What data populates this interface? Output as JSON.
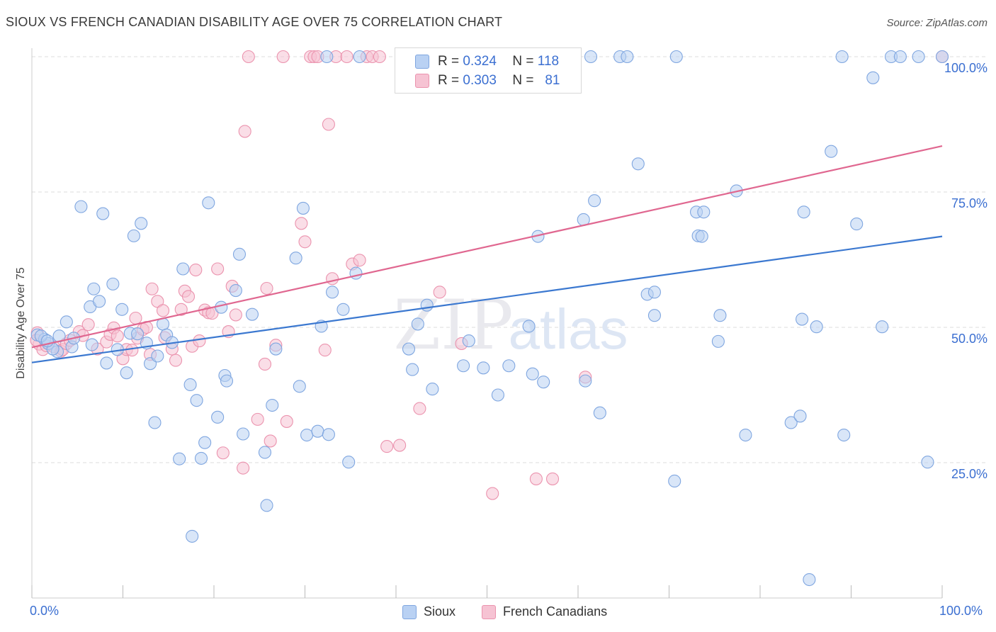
{
  "title": "SIOUX VS FRENCH CANADIAN DISABILITY AGE OVER 75 CORRELATION CHART",
  "source": "Source: ZipAtlas.com",
  "watermark": {
    "zip": "ZIP",
    "atlas": "atlas"
  },
  "legend": {
    "sioux": {
      "r_label": "R =",
      "r_value": "0.324",
      "n_label": "N =",
      "n_value": "118"
    },
    "french": {
      "r_label": "R =",
      "r_value": "0.303",
      "n_label": "N =",
      "n_value": "81"
    }
  },
  "colors": {
    "sioux_fill": "#b9d1f3",
    "sioux_stroke": "#7fa6e0",
    "sioux_line": "#3b78d0",
    "french_fill": "#f6c3d3",
    "french_stroke": "#eb93ae",
    "french_line": "#e06790",
    "tick_text": "#3b6fd1",
    "grid": "#dddddd"
  },
  "chart_data": {
    "type": "scatter",
    "title": "SIOUX VS FRENCH CANADIAN DISABILITY AGE OVER 75 CORRELATION CHART",
    "xlabel": "",
    "ylabel": "Disability Age Over 75",
    "xlim": [
      0,
      100
    ],
    "ylim": [
      0,
      100
    ],
    "x_tick_labels": [
      "0.0%",
      "100.0%"
    ],
    "y_tick_labels": [
      "100.0%",
      "75.0%",
      "50.0%",
      "25.0%"
    ],
    "y_tick_values": [
      100,
      75,
      50,
      25
    ],
    "grid": true,
    "legend_position": "bottom",
    "series": [
      {
        "name": "Sioux",
        "trend": {
          "x": [
            0,
            100
          ],
          "y": [
            43.5,
            66.8
          ]
        },
        "points": [
          [
            0.6,
            48.6
          ],
          [
            1.4,
            47.8
          ],
          [
            1.8,
            47
          ],
          [
            2.8,
            45.5
          ],
          [
            2.3,
            46
          ],
          [
            3,
            48.4
          ],
          [
            3.8,
            51
          ],
          [
            4.4,
            46.4
          ],
          [
            4.6,
            48
          ],
          [
            5.4,
            72.3
          ],
          [
            6.4,
            53.8
          ],
          [
            6.6,
            46.8
          ],
          [
            6.8,
            57.1
          ],
          [
            7.4,
            54.8
          ],
          [
            7.8,
            71
          ],
          [
            8.2,
            43.4
          ],
          [
            8.9,
            58
          ],
          [
            9.4,
            45.9
          ],
          [
            9.9,
            53.3
          ],
          [
            10.4,
            41.6
          ],
          [
            10.8,
            48.9
          ],
          [
            11.2,
            66.9
          ],
          [
            11.6,
            48.8
          ],
          [
            12,
            69.2
          ],
          [
            12.6,
            47.1
          ],
          [
            13,
            43.3
          ],
          [
            13.5,
            32.4
          ],
          [
            13.8,
            44.7
          ],
          [
            14.4,
            50.6
          ],
          [
            14.8,
            48.6
          ],
          [
            15.4,
            47.2
          ],
          [
            16.2,
            25.7
          ],
          [
            16.6,
            60.8
          ],
          [
            17.4,
            39.4
          ],
          [
            17.6,
            11.4
          ],
          [
            18.1,
            36.5
          ],
          [
            18.6,
            25.8
          ],
          [
            19,
            28.7
          ],
          [
            19.4,
            73
          ],
          [
            20.4,
            33.4
          ],
          [
            20.8,
            53.7
          ],
          [
            21.2,
            41.1
          ],
          [
            21.4,
            40.1
          ],
          [
            22.4,
            56.8
          ],
          [
            22.8,
            63.5
          ],
          [
            23.2,
            30.3
          ],
          [
            24.2,
            52.4
          ],
          [
            25.6,
            26.9
          ],
          [
            25.8,
            17.1
          ],
          [
            26.4,
            35.6
          ],
          [
            26.8,
            46
          ],
          [
            29,
            62.8
          ],
          [
            29.4,
            39.1
          ],
          [
            29.8,
            72
          ],
          [
            30.2,
            30.1
          ],
          [
            31.4,
            30.8
          ],
          [
            31.8,
            50.2
          ],
          [
            32.4,
            100
          ],
          [
            32.6,
            30.2
          ],
          [
            33,
            56.5
          ],
          [
            34.2,
            53.3
          ],
          [
            34.8,
            25.1
          ],
          [
            35.6,
            60
          ],
          [
            41.4,
            46
          ],
          [
            41.8,
            42.2
          ],
          [
            42.4,
            50.6
          ],
          [
            43.4,
            54.1
          ],
          [
            44,
            38.6
          ],
          [
            47.4,
            42.9
          ],
          [
            48,
            47.5
          ],
          [
            49.6,
            42.5
          ],
          [
            51.2,
            37.5
          ],
          [
            52.4,
            42.9
          ],
          [
            54.6,
            50.2
          ],
          [
            55,
            41.4
          ],
          [
            55.6,
            66.8
          ],
          [
            56.2,
            39.9
          ],
          [
            60.6,
            69.9
          ],
          [
            60.8,
            40.1
          ],
          [
            61.4,
            100
          ],
          [
            62.4,
            34.2
          ],
          [
            61.8,
            73.4
          ],
          [
            64.6,
            100
          ],
          [
            65.4,
            100
          ],
          [
            66.6,
            80.2
          ],
          [
            67.6,
            56.1
          ],
          [
            68.4,
            56.5
          ],
          [
            68.4,
            52.2
          ],
          [
            70.6,
            21.6
          ],
          [
            70.8,
            100
          ],
          [
            73,
            71.3
          ],
          [
            73.2,
            66.9
          ],
          [
            73.6,
            66.8
          ],
          [
            73.8,
            71.3
          ],
          [
            75.4,
            47.4
          ],
          [
            75.6,
            52.2
          ],
          [
            77.4,
            75.2
          ],
          [
            78.4,
            30.1
          ],
          [
            83.4,
            32.4
          ],
          [
            84.4,
            33.6
          ],
          [
            84.6,
            51.5
          ],
          [
            84.8,
            71.3
          ],
          [
            86.2,
            50.1
          ],
          [
            85.4,
            3.4
          ],
          [
            87.8,
            82.5
          ],
          [
            89,
            100
          ],
          [
            89.2,
            30.1
          ],
          [
            90.6,
            69.1
          ],
          [
            92.4,
            96.1
          ],
          [
            93.4,
            50.1
          ],
          [
            94.4,
            100
          ],
          [
            95.4,
            100
          ],
          [
            97.4,
            100
          ],
          [
            98.4,
            25.1
          ],
          [
            100,
            100
          ],
          [
            1,
            48.4
          ],
          [
            36,
            100
          ],
          [
            1.7,
            47.5
          ]
        ]
      },
      {
        "name": "French Canadians",
        "trend": {
          "x": [
            0,
            100
          ],
          "y": [
            46.3,
            83.5
          ]
        },
        "points": [
          [
            0.6,
            49
          ],
          [
            0.8,
            46.9
          ],
          [
            1.2,
            45.9
          ],
          [
            1.6,
            46.6
          ],
          [
            2.4,
            46.4
          ],
          [
            3.2,
            45.6
          ],
          [
            3.4,
            45.9
          ],
          [
            3.8,
            47
          ],
          [
            4.2,
            47.6
          ],
          [
            5.2,
            49.2
          ],
          [
            5.6,
            48.5
          ],
          [
            6.2,
            50.5
          ],
          [
            7.2,
            46
          ],
          [
            8.2,
            47.3
          ],
          [
            8.6,
            48.7
          ],
          [
            9,
            49.9
          ],
          [
            9.4,
            48.4
          ],
          [
            10,
            44.2
          ],
          [
            10.4,
            45.9
          ],
          [
            11,
            45.8
          ],
          [
            11.4,
            51.7
          ],
          [
            11.6,
            48
          ],
          [
            12.2,
            49.6
          ],
          [
            12.6,
            50
          ],
          [
            13,
            45
          ],
          [
            13.2,
            57.1
          ],
          [
            13.8,
            54.8
          ],
          [
            14.4,
            53.1
          ],
          [
            14.6,
            48.1
          ],
          [
            15.4,
            46
          ],
          [
            15.8,
            43.9
          ],
          [
            16.4,
            53.3
          ],
          [
            16.8,
            56.7
          ],
          [
            17.2,
            55.7
          ],
          [
            17.6,
            46.5
          ],
          [
            18,
            60.6
          ],
          [
            18.4,
            47.5
          ],
          [
            19,
            53.2
          ],
          [
            19.4,
            52.7
          ],
          [
            19.8,
            52.6
          ],
          [
            20.4,
            60.8
          ],
          [
            21,
            26.8
          ],
          [
            21.6,
            49.2
          ],
          [
            22,
            57.6
          ],
          [
            22.4,
            52.3
          ],
          [
            23.2,
            24
          ],
          [
            23.4,
            86.2
          ],
          [
            23.8,
            100
          ],
          [
            24.8,
            33
          ],
          [
            25.6,
            43.2
          ],
          [
            25.8,
            57.2
          ],
          [
            26.2,
            29
          ],
          [
            26.8,
            46.7
          ],
          [
            27.6,
            100
          ],
          [
            28,
            32.6
          ],
          [
            29.6,
            69.2
          ],
          [
            30,
            65.8
          ],
          [
            30.6,
            100
          ],
          [
            31,
            100
          ],
          [
            31.4,
            100
          ],
          [
            32.2,
            45.8
          ],
          [
            32.6,
            87.5
          ],
          [
            33,
            59
          ],
          [
            33.4,
            100
          ],
          [
            34.6,
            100
          ],
          [
            35.2,
            61.7
          ],
          [
            36,
            62.4
          ],
          [
            36.8,
            100
          ],
          [
            37.4,
            100
          ],
          [
            38.2,
            100
          ],
          [
            39,
            28
          ],
          [
            40.4,
            28.2
          ],
          [
            42.6,
            35
          ],
          [
            44.8,
            56.5
          ],
          [
            47.2,
            47
          ],
          [
            50.6,
            19.3
          ],
          [
            55.4,
            22
          ],
          [
            57.2,
            22
          ],
          [
            60.8,
            40.8
          ],
          [
            100,
            100
          ],
          [
            0.5,
            47.6
          ]
        ]
      }
    ]
  }
}
